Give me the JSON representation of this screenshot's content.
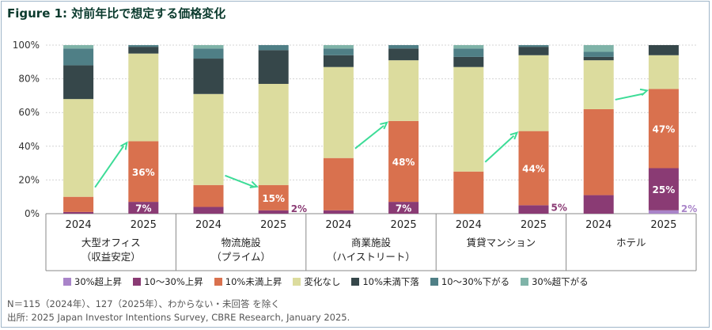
{
  "title": "Figure 1: 対前年比で想定する価格変化",
  "chart_data": {
    "type": "bar",
    "stacked": true,
    "y_ticks": [
      "0%",
      "20%",
      "40%",
      "60%",
      "80%",
      "100%"
    ],
    "ylim": [
      0,
      100
    ],
    "groups": [
      {
        "label": [
          "大型オフィス",
          "（収益安定）"
        ],
        "years": [
          "2024",
          "2025"
        ]
      },
      {
        "label": [
          "物流施設",
          "（プライム）"
        ],
        "years": [
          "2024",
          "2025"
        ]
      },
      {
        "label": [
          "商業施設",
          "（ハイストリート）"
        ],
        "years": [
          "2024",
          "2025"
        ]
      },
      {
        "label": [
          "賃貸マンション"
        ],
        "years": [
          "2024",
          "2025"
        ]
      },
      {
        "label": [
          "ホテル"
        ],
        "years": [
          "2024",
          "2025"
        ]
      }
    ],
    "series": [
      {
        "name": "30%超上昇",
        "color": "#a984c9",
        "values": [
          [
            0,
            0
          ],
          [
            0,
            0
          ],
          [
            0,
            0
          ],
          [
            0,
            0
          ],
          [
            0,
            2
          ]
        ]
      },
      {
        "name": "10～30%上昇",
        "color": "#8a3b74",
        "values": [
          [
            1,
            7
          ],
          [
            4,
            2
          ],
          [
            2,
            7
          ],
          [
            0,
            5
          ],
          [
            11,
            25
          ]
        ]
      },
      {
        "name": "10%未満上昇",
        "color": "#d9714e",
        "values": [
          [
            9,
            36
          ],
          [
            13,
            15
          ],
          [
            31,
            48
          ],
          [
            25,
            44
          ],
          [
            51,
            47
          ]
        ]
      },
      {
        "name": "変化なし",
        "color": "#dcdc9e",
        "values": [
          [
            58,
            52
          ],
          [
            54,
            60
          ],
          [
            54,
            36
          ],
          [
            62,
            45
          ],
          [
            29,
            20
          ]
        ]
      },
      {
        "name": "10%未満下落",
        "color": "#36474a",
        "values": [
          [
            20,
            4
          ],
          [
            21,
            20
          ],
          [
            7,
            7
          ],
          [
            6,
            5
          ],
          [
            2,
            6
          ]
        ]
      },
      {
        "name": "10～30%下がる",
        "color": "#4f7f86",
        "values": [
          [
            10,
            1
          ],
          [
            6,
            3
          ],
          [
            4,
            2
          ],
          [
            5,
            1
          ],
          [
            3,
            0
          ]
        ]
      },
      {
        "name": "30%超下がる",
        "color": "#7fb3a8",
        "values": [
          [
            2,
            0
          ],
          [
            2,
            0
          ],
          [
            2,
            0
          ],
          [
            2,
            0
          ],
          [
            4,
            0
          ]
        ]
      }
    ],
    "data_labels": [
      {
        "group": 0,
        "year": 1,
        "series": 2,
        "text": "36%"
      },
      {
        "group": 0,
        "year": 1,
        "series": 1,
        "text": "7%"
      },
      {
        "group": 1,
        "year": 1,
        "series": 2,
        "text": "15%"
      },
      {
        "group": 1,
        "year": 1,
        "series": 1,
        "text": "2%",
        "outside": true
      },
      {
        "group": 2,
        "year": 1,
        "series": 2,
        "text": "48%"
      },
      {
        "group": 2,
        "year": 1,
        "series": 1,
        "text": "7%"
      },
      {
        "group": 3,
        "year": 1,
        "series": 2,
        "text": "44%"
      },
      {
        "group": 3,
        "year": 1,
        "series": 1,
        "text": "5%",
        "outside": true
      },
      {
        "group": 4,
        "year": 1,
        "series": 2,
        "text": "47%"
      },
      {
        "group": 4,
        "year": 1,
        "series": 1,
        "text": "25%"
      },
      {
        "group": 4,
        "year": 1,
        "series": 0,
        "text": "2%",
        "outside": true
      }
    ],
    "arrow_color": "#3ddc97"
  },
  "notes": {
    "line1": "N＝115（2024年）、127（2025年）、わからない・未回答 を除く",
    "line2": "出所: 2025 Japan Investor Intentions Survey, CBRE Research, January 2025."
  }
}
